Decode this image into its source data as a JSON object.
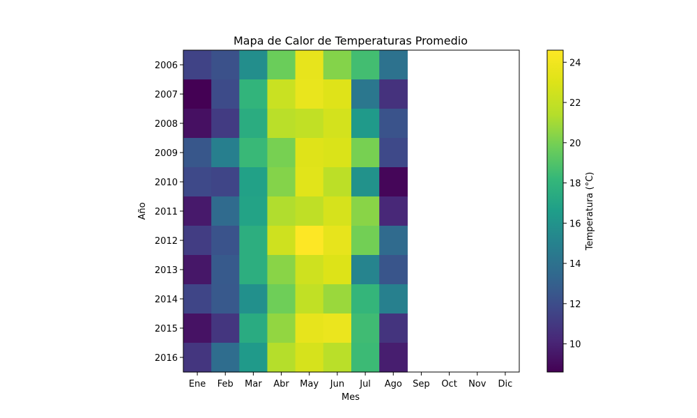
{
  "chart_data": {
    "type": "heatmap",
    "title": "Mapa de Calor de Temperaturas Promedio",
    "xlabel": "Mes",
    "ylabel": "Año",
    "x_categories": [
      "Ene",
      "Feb",
      "Mar",
      "Abr",
      "May",
      "Jun",
      "Jul",
      "Ago",
      "Sep",
      "Oct",
      "Nov",
      "Dic"
    ],
    "y_categories": [
      "2006",
      "2007",
      "2008",
      "2009",
      "2010",
      "2011",
      "2012",
      "2013",
      "2014",
      "2015",
      "2016"
    ],
    "values": [
      [
        11.5,
        12.2,
        15.7,
        19.7,
        23.5,
        20.3,
        18.6,
        14.0,
        null,
        null,
        null,
        null
      ],
      [
        8.6,
        11.9,
        18.0,
        22.2,
        23.6,
        23.1,
        14.3,
        10.7,
        null,
        null,
        null,
        null
      ],
      [
        9.2,
        11.1,
        17.5,
        21.6,
        21.9,
        22.6,
        16.4,
        12.3,
        null,
        null,
        null,
        null
      ],
      [
        12.5,
        14.8,
        18.3,
        20.0,
        23.1,
        22.9,
        20.0,
        11.8,
        null,
        null,
        null,
        null
      ],
      [
        11.8,
        11.6,
        16.8,
        20.3,
        23.2,
        21.7,
        15.9,
        8.8,
        null,
        null,
        null,
        null
      ],
      [
        9.6,
        13.6,
        16.9,
        21.3,
        21.8,
        22.7,
        20.4,
        10.2,
        null,
        null,
        null,
        null
      ],
      [
        11.2,
        12.3,
        17.6,
        22.4,
        24.6,
        23.5,
        19.9,
        13.6,
        null,
        null,
        null,
        null
      ],
      [
        9.5,
        12.7,
        17.6,
        20.4,
        22.4,
        23.0,
        15.1,
        12.4,
        null,
        null,
        null,
        null
      ],
      [
        11.6,
        12.6,
        15.8,
        19.8,
        21.9,
        20.8,
        18.1,
        14.9,
        null,
        null,
        null,
        null
      ],
      [
        9.3,
        10.9,
        17.4,
        20.6,
        23.5,
        23.7,
        18.5,
        10.8,
        null,
        null,
        null,
        null
      ],
      [
        10.9,
        13.7,
        16.4,
        21.4,
        22.7,
        21.6,
        18.4,
        9.8,
        null,
        null,
        null,
        null
      ]
    ],
    "colorbar": {
      "label": "Temperatura (°C)",
      "min": 8.6,
      "max": 24.6,
      "ticks": [
        "10",
        "12",
        "14",
        "16",
        "18",
        "20",
        "22",
        "24"
      ],
      "colormap": "viridis"
    }
  }
}
